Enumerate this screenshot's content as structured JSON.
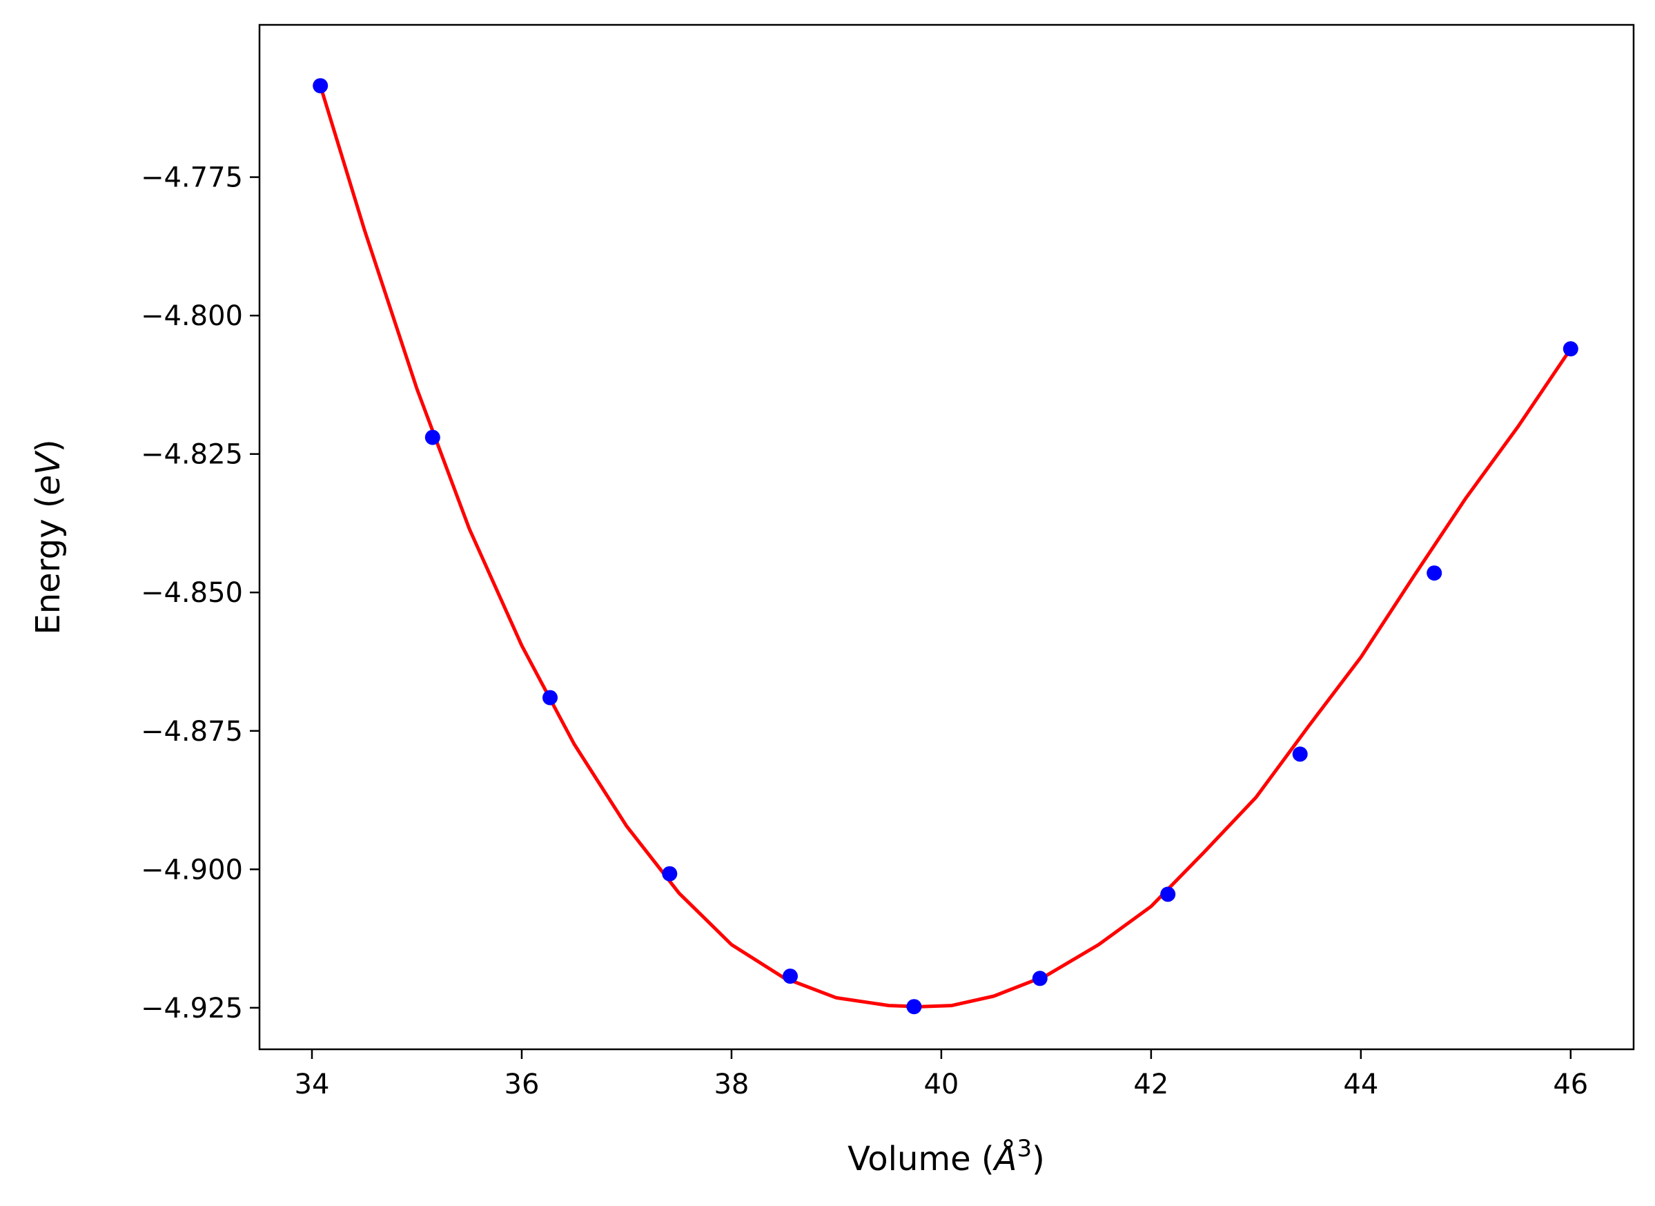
{
  "chart_data": {
    "type": "scatter",
    "title": "",
    "xlabel": {
      "prefix": "Volume (",
      "symbol": "Å",
      "exponent": "3",
      "suffix": ")"
    },
    "ylabel": {
      "prefix": "Energy (",
      "symbol": "eV",
      "suffix": ")"
    },
    "xlim": [
      33.5,
      46.6
    ],
    "ylim": [
      -4.9325,
      -4.7475
    ],
    "xticks": [
      34,
      36,
      38,
      40,
      42,
      44,
      46
    ],
    "xtick_labels": [
      "34",
      "36",
      "38",
      "40",
      "42",
      "44",
      "46"
    ],
    "yticks": [
      -4.775,
      -4.8,
      -4.825,
      -4.85,
      -4.875,
      -4.9,
      -4.925
    ],
    "ytick_labels": [
      "−4.775",
      "−4.800",
      "−4.825",
      "−4.850",
      "−4.875",
      "−4.900",
      "−4.925"
    ],
    "grid": false,
    "legend": "none",
    "series": [
      {
        "kind": "points",
        "color": "#0000ff",
        "x": [
          34.08,
          35.15,
          36.27,
          37.41,
          38.56,
          39.74,
          40.94,
          42.16,
          43.42,
          44.7,
          46.0
        ],
        "y": [
          -4.7585,
          -4.822,
          -4.869,
          -4.9008,
          -4.9193,
          -4.9248,
          -4.9197,
          -4.9045,
          -4.8792,
          -4.8465,
          -4.806
        ]
      },
      {
        "kind": "fit-curve",
        "color": "#ff0000",
        "x": [
          34.08,
          34.5,
          35.0,
          35.5,
          36.0,
          36.5,
          37.0,
          37.5,
          38.0,
          38.5,
          39.0,
          39.5,
          39.8,
          40.1,
          40.5,
          41.0,
          41.5,
          42.0,
          42.5,
          43.0,
          43.5,
          44.0,
          44.5,
          45.0,
          45.5,
          46.0
        ],
        "y": [
          -4.7585,
          -4.7845,
          -4.8132,
          -4.8385,
          -4.8596,
          -4.8774,
          -4.8922,
          -4.9043,
          -4.9136,
          -4.9196,
          -4.9232,
          -4.9246,
          -4.9248,
          -4.9246,
          -4.9229,
          -4.9192,
          -4.9136,
          -4.9067,
          -4.897,
          -4.887,
          -4.8742,
          -4.8617,
          -4.8472,
          -4.833,
          -4.82,
          -4.806
        ]
      }
    ]
  }
}
